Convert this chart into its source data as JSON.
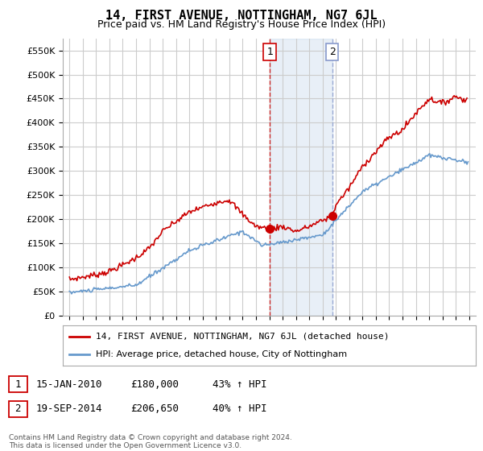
{
  "title": "14, FIRST AVENUE, NOTTINGHAM, NG7 6JL",
  "subtitle": "Price paid vs. HM Land Registry's House Price Index (HPI)",
  "ylabel_ticks": [
    "£0",
    "£50K",
    "£100K",
    "£150K",
    "£200K",
    "£250K",
    "£300K",
    "£350K",
    "£400K",
    "£450K",
    "£500K",
    "£550K"
  ],
  "ytick_values": [
    0,
    50000,
    100000,
    150000,
    200000,
    250000,
    300000,
    350000,
    400000,
    450000,
    500000,
    550000
  ],
  "ylim": [
    0,
    575000
  ],
  "xlim_start": 1994.5,
  "xlim_end": 2025.5,
  "color_red": "#cc0000",
  "color_blue": "#6699cc",
  "color_vline1": "#cc0000",
  "color_vline2": "#8899cc",
  "color_grid": "#cccccc",
  "color_bg": "#ffffff",
  "sale1_x": 2010.04,
  "sale1_y": 180000,
  "sale2_x": 2014.72,
  "sale2_y": 206650,
  "annotation1_label": "1",
  "annotation2_label": "2",
  "legend_line1": "14, FIRST AVENUE, NOTTINGHAM, NG7 6JL (detached house)",
  "legend_line2": "HPI: Average price, detached house, City of Nottingham",
  "table_row1": [
    "1",
    "15-JAN-2010",
    "£180,000",
    "43% ↑ HPI"
  ],
  "table_row2": [
    "2",
    "19-SEP-2014",
    "£206,650",
    "40% ↑ HPI"
  ],
  "footer": "Contains HM Land Registry data © Crown copyright and database right 2024.\nThis data is licensed under the Open Government Licence v3.0."
}
